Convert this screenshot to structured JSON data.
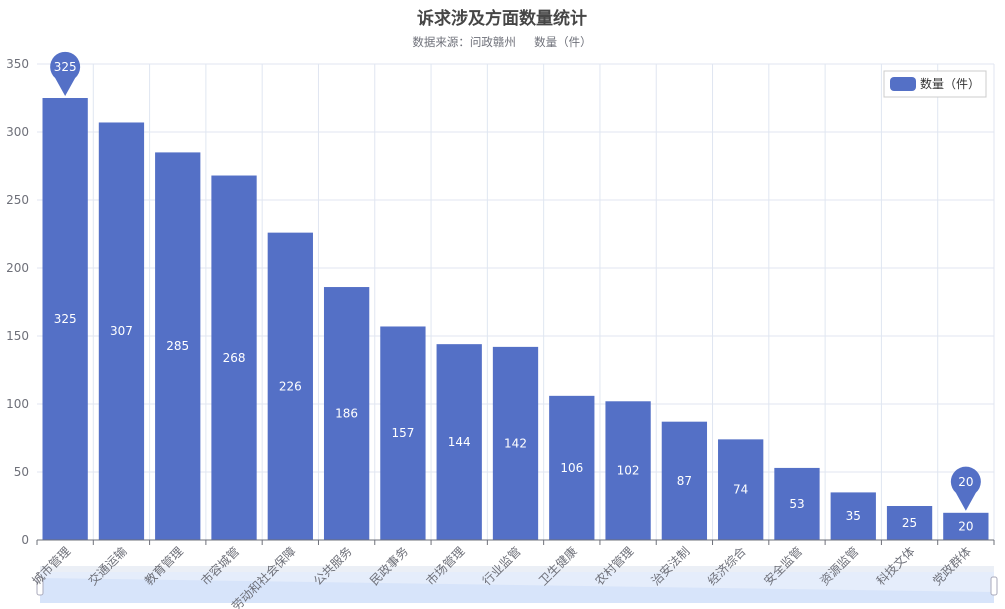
{
  "chart_data": {
    "type": "bar",
    "title": "诉求涉及方面数量统计",
    "subtitle": "数据来源：问政赣州     数量（件）",
    "categories": [
      "城市管理",
      "交通运输",
      "教育管理",
      "市容城管",
      "劳动和社会保障",
      "公共服务",
      "民政事务",
      "市场管理",
      "行业监管",
      "卫生健康",
      "农村管理",
      "治安法制",
      "经济综合",
      "安全监管",
      "资源监管",
      "科技文体",
      "党政群体"
    ],
    "series": [
      {
        "name": "数量（件）",
        "values": [
          325,
          307,
          285,
          268,
          226,
          186,
          157,
          144,
          142,
          106,
          102,
          87,
          74,
          53,
          35,
          25,
          20
        ]
      }
    ],
    "ylim": [
      0,
      350
    ],
    "yticks": [
      0,
      50,
      100,
      150,
      200,
      250,
      300,
      350
    ],
    "grid": true,
    "legend": "top-right",
    "markers": [
      {
        "type": "max",
        "value": 325,
        "category": "城市管理"
      },
      {
        "type": "min",
        "value": 20,
        "category": "党政群体"
      }
    ],
    "data_labels": "inside",
    "data_zoom_slider": true,
    "colors": {
      "bar": "#5470c6",
      "axis": "#6e7079",
      "grid": "#e0e6f1",
      "title": "#464646",
      "subtitle": "#6e7079"
    }
  }
}
